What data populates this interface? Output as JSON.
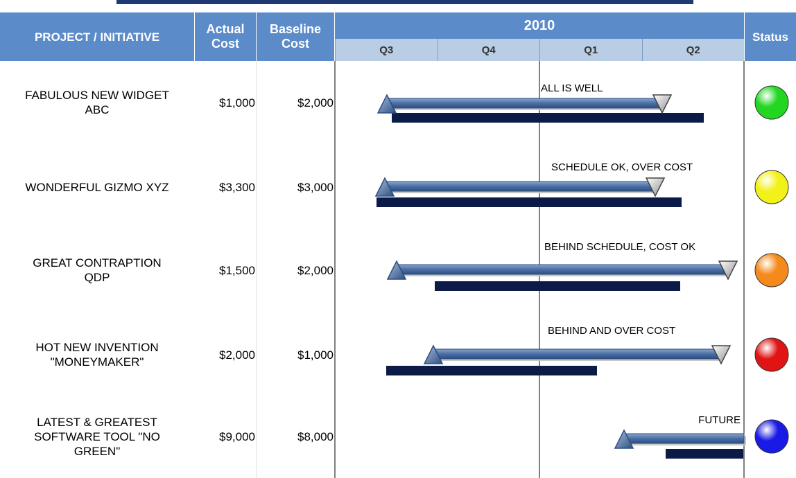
{
  "header": {
    "project": "PROJECT / INITIATIVE",
    "actual_cost": "Actual Cost",
    "baseline_cost": "Baseline Cost",
    "year": "2010",
    "quarters": [
      "Q3",
      "Q4",
      "Q1",
      "Q2"
    ],
    "status": "Status"
  },
  "rows": [
    {
      "project": "FABULOUS NEW WIDGET ABC",
      "actual_cost": "$1,000",
      "baseline_cost": "$2,000",
      "note": "ALL IS WELL",
      "status_color": "#22d622"
    },
    {
      "project": "WONDERFUL GIZMO XYZ",
      "actual_cost": "$3,300",
      "baseline_cost": "$3,000",
      "note": "SCHEDULE OK, OVER COST",
      "status_color": "#f2f21a"
    },
    {
      "project": "GREAT CONTRAPTION QDP",
      "actual_cost": "$1,500",
      "baseline_cost": "$2,000",
      "note": "BEHIND SCHEDULE, COST OK",
      "status_color": "#f58a1c"
    },
    {
      "project": "HOT NEW INVENTION \"MONEYMAKER\"",
      "actual_cost": "$2,000",
      "baseline_cost": "$1,000",
      "note": "BEHIND AND OVER COST",
      "status_color": "#e01414"
    },
    {
      "project": "LATEST & GREATEST SOFTWARE TOOL \"NO GREEN\"",
      "actual_cost": "$9,000",
      "baseline_cost": "$8,000",
      "note": "FUTURE",
      "status_color": "#1a1ae6"
    }
  ]
}
